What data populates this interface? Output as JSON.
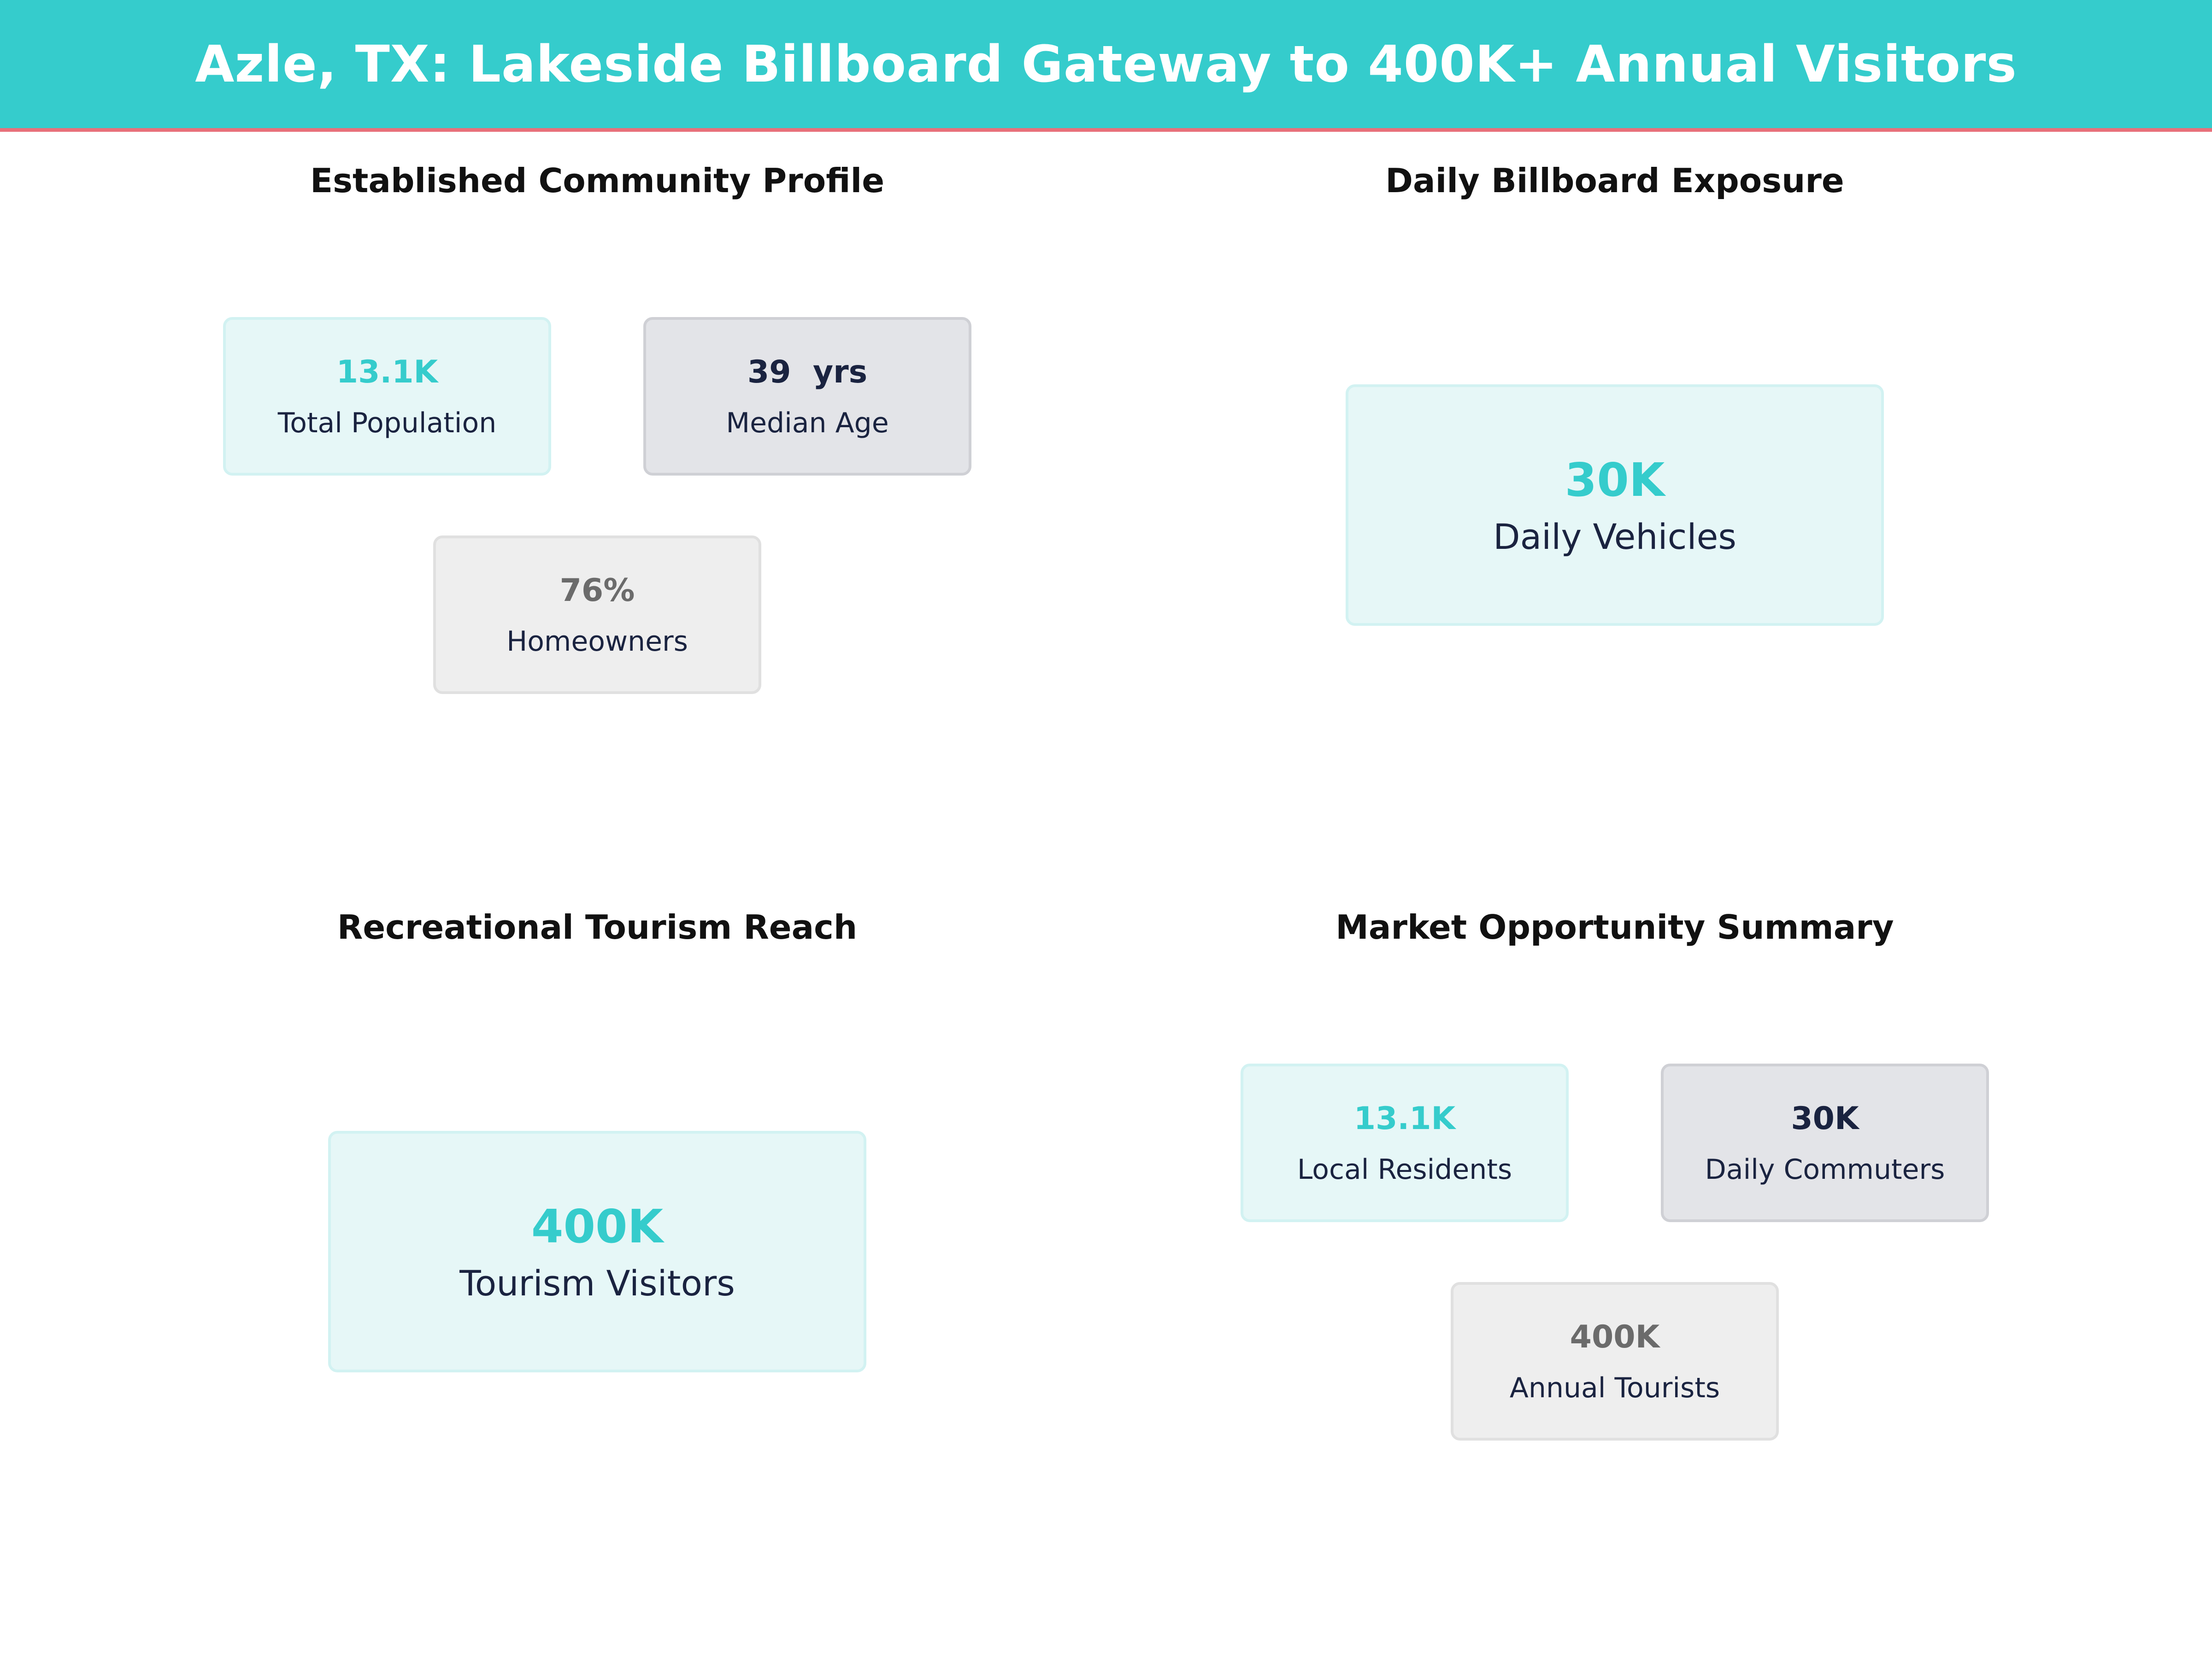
{
  "header": {
    "title": "Azle, TX: Lakeside Billboard Gateway to 400K+ Annual Visitors"
  },
  "panels": {
    "community": {
      "title": "Established Community Profile",
      "cards": [
        {
          "value": "13.1K",
          "label": "Total Population"
        },
        {
          "value": "39  yrs",
          "label": "Median Age"
        },
        {
          "value": "76%",
          "label": "Homeowners"
        }
      ]
    },
    "exposure": {
      "title": "Daily Billboard Exposure",
      "card": {
        "value": "30K",
        "label": "Daily Vehicles"
      }
    },
    "tourism": {
      "title": "Recreational Tourism Reach",
      "card": {
        "value": "400K",
        "label": "Tourism Visitors"
      }
    },
    "summary": {
      "title": "Market Opportunity Summary",
      "cards": [
        {
          "value": "13.1K",
          "label": "Local Residents"
        },
        {
          "value": "30K",
          "label": "Daily Commuters"
        },
        {
          "value": "400K",
          "label": "Annual Tourists"
        }
      ]
    }
  },
  "colors": {
    "banner": "#35cccc",
    "banner_rule": "#e8707a",
    "accent_teal": "#35cccc",
    "accent_navy": "#1a2340",
    "accent_gray": "#6b6b6b"
  }
}
